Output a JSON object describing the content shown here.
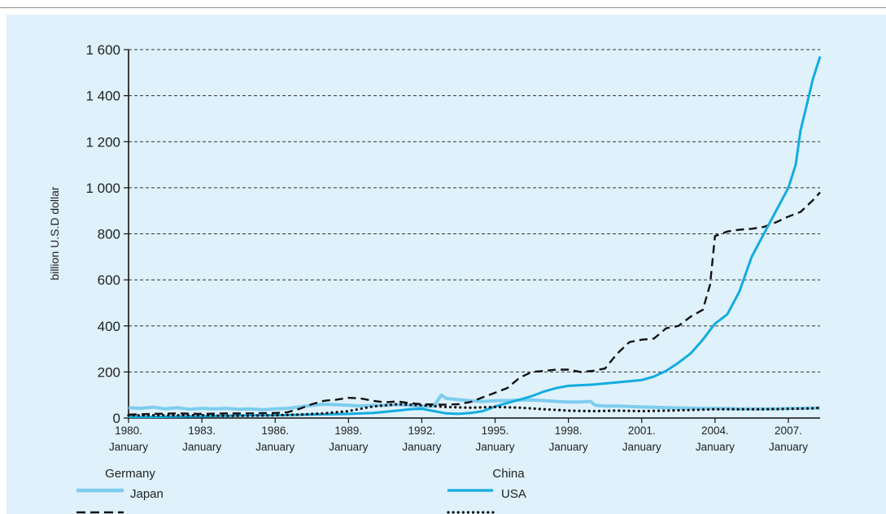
{
  "colors": {
    "background": "#dff1fb",
    "germany": "#7dcdee",
    "china": "#12ace0",
    "japan": "#111111",
    "usa": "#111111",
    "grid": "#333333"
  },
  "chart_data": {
    "type": "line",
    "title": "",
    "xlabel": "",
    "ylabel": "billion U.S.D dollar",
    "xlim": [
      1980,
      2008.3
    ],
    "ylim": [
      0,
      1600
    ],
    "y_ticks": [
      {
        "value": 0,
        "label": "0"
      },
      {
        "value": 200,
        "label": "200"
      },
      {
        "value": 400,
        "label": "400"
      },
      {
        "value": 600,
        "label": "600"
      },
      {
        "value": 800,
        "label": "800"
      },
      {
        "value": 1000,
        "label": "1 000"
      },
      {
        "value": 1200,
        "label": "1 200"
      },
      {
        "value": 1400,
        "label": "1 400"
      },
      {
        "value": 1600,
        "label": "1 600"
      }
    ],
    "x_ticks": [
      {
        "value": 1980,
        "line1": "1980.",
        "line2": "January"
      },
      {
        "value": 1983,
        "line1": "1983.",
        "line2": "January"
      },
      {
        "value": 1986,
        "line1": "1986.",
        "line2": "January"
      },
      {
        "value": 1989,
        "line1": "1989.",
        "line2": "January"
      },
      {
        "value": 1992,
        "line1": "1992.",
        "line2": "January"
      },
      {
        "value": 1995,
        "line1": "1995.",
        "line2": "January"
      },
      {
        "value": 1998,
        "line1": "1998.",
        "line2": "January"
      },
      {
        "value": 2001,
        "line1": "2001.",
        "line2": "January"
      },
      {
        "value": 2004,
        "line1": "2004.",
        "line2": "January"
      },
      {
        "value": 2007,
        "line1": "2007.",
        "line2": "January"
      }
    ],
    "grid": "horizontal dashed",
    "legend_position": "bottom",
    "series": [
      {
        "name": "Germany",
        "style": "solid-light",
        "x": [
          1980,
          1980.5,
          1981,
          1981.5,
          1982,
          1982.5,
          1983,
          1983.5,
          1984,
          1984.5,
          1985,
          1985.5,
          1986,
          1986.5,
          1987,
          1987.5,
          1988,
          1988.5,
          1989,
          1989.5,
          1990,
          1990.5,
          1991,
          1991.5,
          1992,
          1992.5,
          1992.8,
          1993,
          1993.5,
          1994,
          1994.5,
          1995,
          1995.5,
          1996,
          1996.5,
          1997,
          1997.5,
          1998,
          1998.5,
          1998.9,
          1999.1,
          1999.5,
          2000,
          2000.5,
          2001,
          2001.5,
          2002,
          2002.5,
          2003,
          2003.5,
          2004,
          2004.5,
          2005,
          2005.5,
          2006,
          2006.5,
          2007,
          2007.5,
          2008,
          2008.3
        ],
        "y": [
          45,
          42,
          47,
          40,
          45,
          38,
          42,
          40,
          42,
          38,
          40,
          36,
          40,
          42,
          48,
          55,
          60,
          58,
          55,
          52,
          55,
          55,
          58,
          55,
          50,
          52,
          100,
          85,
          80,
          75,
          72,
          75,
          76,
          78,
          78,
          76,
          72,
          70,
          70,
          72,
          55,
          52,
          52,
          50,
          48,
          47,
          45,
          44,
          43,
          42,
          42,
          42,
          40,
          40,
          40,
          40,
          42,
          42,
          43,
          43
        ]
      },
      {
        "name": "Japan",
        "style": "dashed",
        "x": [
          1980,
          1981,
          1982,
          1983,
          1984,
          1985,
          1986,
          1986.5,
          1987,
          1987.5,
          1988,
          1988.5,
          1989,
          1989.5,
          1990,
          1990.5,
          1991,
          1991.5,
          1992,
          1993,
          1993.5,
          1994,
          1994.5,
          1995,
          1995.5,
          1996,
          1996.5,
          1997,
          1997.5,
          1998,
          1998.5,
          1999,
          1999.5,
          2000,
          2000.5,
          2001,
          2001.5,
          2002,
          2002.5,
          2003,
          2003.5,
          2003.8,
          2004,
          2004.5,
          2005,
          2005.5,
          2006,
          2006.5,
          2007,
          2007.5,
          2008,
          2008.3
        ],
        "y": [
          15,
          18,
          20,
          18,
          20,
          20,
          22,
          25,
          40,
          60,
          75,
          80,
          88,
          85,
          75,
          68,
          72,
          65,
          60,
          58,
          60,
          70,
          90,
          110,
          130,
          175,
          200,
          205,
          210,
          210,
          200,
          205,
          215,
          280,
          330,
          340,
          345,
          390,
          400,
          440,
          470,
          580,
          790,
          810,
          818,
          822,
          830,
          850,
          875,
          895,
          945,
          980
        ]
      },
      {
        "name": "China",
        "style": "solid",
        "x": [
          1980,
          1981,
          1982,
          1983,
          1984,
          1985,
          1986,
          1987,
          1988,
          1989,
          1990,
          1990.5,
          1991,
          1991.5,
          1992,
          1992.5,
          1993,
          1993.5,
          1994,
          1994.5,
          1995,
          1995.5,
          1996,
          1996.5,
          1997,
          1997.5,
          1998,
          1999,
          2000,
          2000.5,
          2001,
          2001.5,
          2002,
          2002.5,
          2003,
          2003.5,
          2004,
          2004.5,
          2005,
          2005.5,
          2006,
          2006.5,
          2007,
          2007.3,
          2007.5,
          2007.8,
          2008,
          2008.3
        ],
        "y": [
          5,
          5,
          6,
          8,
          10,
          12,
          12,
          14,
          16,
          18,
          22,
          27,
          32,
          38,
          40,
          30,
          20,
          18,
          22,
          30,
          50,
          65,
          80,
          95,
          115,
          130,
          140,
          145,
          155,
          160,
          165,
          180,
          205,
          240,
          280,
          340,
          410,
          450,
          550,
          700,
          800,
          900,
          1000,
          1100,
          1250,
          1380,
          1470,
          1570
        ]
      },
      {
        "name": "USA",
        "style": "dotted",
        "x": [
          1980,
          1981,
          1982,
          1983,
          1984,
          1985,
          1986,
          1987,
          1988,
          1989,
          1990,
          1991,
          1992,
          1993,
          1994,
          1995,
          1996,
          1997,
          1998,
          1999,
          2000,
          2001,
          2002,
          2003,
          2004,
          2005,
          2006,
          2007,
          2008,
          2008.3
        ],
        "y": [
          12,
          12,
          12,
          12,
          10,
          10,
          12,
          15,
          20,
          30,
          50,
          60,
          55,
          48,
          45,
          48,
          45,
          38,
          32,
          30,
          32,
          30,
          32,
          35,
          38,
          38,
          38,
          40,
          42,
          45
        ]
      }
    ]
  }
}
